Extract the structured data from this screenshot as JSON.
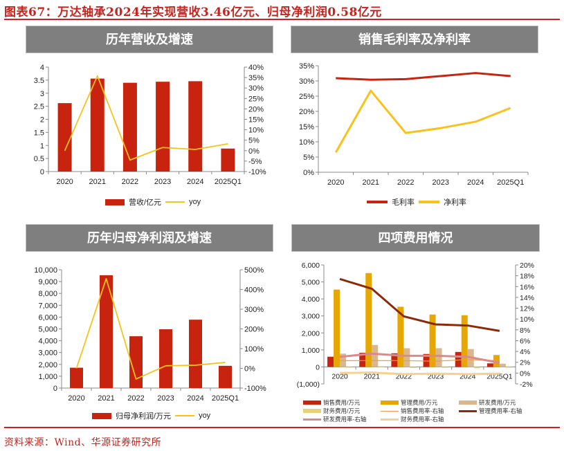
{
  "header": {
    "title": "图表67：万达轴承2024年实现营收3.46亿元、归母净利润0.58亿元"
  },
  "footer": {
    "source": "资料来源：Wind、华源证券研究所"
  },
  "colors": {
    "red": "#c8230e",
    "yellow": "#f7c21b",
    "dark_red": "#8b2a0a",
    "gold": "#e6a800",
    "tan": "#d9b88f",
    "khaki": "#e5d37a",
    "orange": "#f29a4e",
    "pink": "#d98a8a",
    "light_orange": "#f9cf8f",
    "header_bg": "#7f7f7f"
  },
  "panels": {
    "revenue": {
      "title": "历年营收及增速",
      "legend_bar": "营收/亿元",
      "legend_line": "yoy"
    },
    "margin": {
      "title": "销售毛利率及净利率",
      "legend_gross": "毛利率",
      "legend_net": "净利率"
    },
    "profit": {
      "title": "历年归母净利润及增速",
      "legend_bar": "归母净利润/万元",
      "legend_line": "yoy"
    },
    "expenses": {
      "title": "四项费用情况",
      "legend": [
        "销售费用/万元",
        "管理费用/万元",
        "研发费用/万元",
        "财务费用/万元",
        "销售费用率-右轴",
        "管理费用率-右轴",
        "研发费用率-右轴",
        "财务费用率-右轴"
      ]
    }
  },
  "chart_data": [
    {
      "id": "revenue",
      "type": "bar",
      "title": "历年营收及增速",
      "categories": [
        "2020",
        "2021",
        "2022",
        "2023",
        "2024",
        "2025Q1"
      ],
      "series": [
        {
          "name": "营收/亿元",
          "type": "bar",
          "axis": "left",
          "values": [
            2.62,
            3.56,
            3.4,
            3.44,
            3.46,
            0.88
          ]
        },
        {
          "name": "yoy",
          "type": "line",
          "axis": "right",
          "values": [
            0.0,
            35.8,
            -4.5,
            1.5,
            0.6,
            3.3
          ]
        }
      ],
      "yleft": {
        "min": 0,
        "max": 4,
        "step": 0.5,
        "ticks": [
          "0",
          "0.5",
          "1",
          "1.5",
          "2",
          "2.5",
          "3",
          "3.5",
          "4"
        ]
      },
      "yright": {
        "min": -10,
        "max": 40,
        "step": 5,
        "ticks": [
          "-10%",
          "-5%",
          "0%",
          "5%",
          "10%",
          "15%",
          "20%",
          "25%",
          "30%",
          "35%",
          "40%"
        ]
      }
    },
    {
      "id": "margin",
      "type": "line",
      "title": "销售毛利率及净利率",
      "categories": [
        "2020",
        "2021",
        "2022",
        "2023",
        "2024",
        "2025Q1"
      ],
      "series": [
        {
          "name": "毛利率",
          "values": [
            30.9,
            30.4,
            30.6,
            31.6,
            32.6,
            31.6
          ]
        },
        {
          "name": "净利率",
          "values": [
            6.5,
            26.8,
            12.9,
            14.5,
            16.6,
            21.1
          ]
        }
      ],
      "yleft": {
        "min": 0,
        "max": 35,
        "step": 5,
        "ticks": [
          "0%",
          "5%",
          "10%",
          "15%",
          "20%",
          "25%",
          "30%",
          "35%"
        ]
      }
    },
    {
      "id": "profit",
      "type": "bar",
      "title": "历年归母净利润及增速",
      "categories": [
        "2020",
        "2021",
        "2022",
        "2023",
        "2024",
        "2025Q1"
      ],
      "series": [
        {
          "name": "归母净利润/万元",
          "type": "bar",
          "axis": "left",
          "values": [
            1720,
            9540,
            4380,
            4970,
            5780,
            1880
          ]
        },
        {
          "name": "yoy",
          "type": "line",
          "axis": "right",
          "values": [
            0,
            455,
            -54,
            13,
            16,
            30
          ]
        }
      ],
      "yleft": {
        "min": 0,
        "max": 10000,
        "step": 1000,
        "ticks": [
          "0",
          "1,000",
          "2,000",
          "3,000",
          "4,000",
          "5,000",
          "6,000",
          "7,000",
          "8,000",
          "9,000",
          "10,000"
        ]
      },
      "yright": {
        "min": -100,
        "max": 500,
        "step": 100,
        "ticks": [
          "-100%",
          "0%",
          "100%",
          "200%",
          "300%",
          "400%",
          "500%"
        ]
      }
    },
    {
      "id": "expenses",
      "type": "bar",
      "title": "四项费用情况",
      "categories": [
        "2020",
        "2021",
        "2022",
        "2023",
        "2024",
        "2025Q1"
      ],
      "series": [
        {
          "name": "销售费用/万元",
          "type": "bar",
          "axis": "left",
          "values": [
            600,
            830,
            800,
            760,
            880,
            210
          ]
        },
        {
          "name": "管理费用/万元",
          "type": "bar",
          "axis": "left",
          "values": [
            4550,
            5520,
            3540,
            3080,
            3040,
            700
          ]
        },
        {
          "name": "研发费用/万元",
          "type": "bar",
          "axis": "left",
          "values": [
            780,
            1290,
            1100,
            1100,
            1050,
            190
          ]
        },
        {
          "name": "财务费用/万元",
          "type": "bar",
          "axis": "left",
          "values": [
            -10,
            40,
            -60,
            -50,
            -80,
            -30
          ]
        },
        {
          "name": "销售费用率-右轴",
          "type": "line",
          "axis": "right",
          "values": [
            2.3,
            2.3,
            2.3,
            2.2,
            2.5,
            2.3
          ]
        },
        {
          "name": "管理费用率-右轴",
          "type": "line",
          "axis": "right",
          "values": [
            17.4,
            15.6,
            10.5,
            9.0,
            8.8,
            7.8
          ]
        },
        {
          "name": "研发费用率-右轴",
          "type": "line",
          "axis": "right",
          "values": [
            3.0,
            3.6,
            3.2,
            3.2,
            3.0,
            1.9
          ]
        },
        {
          "name": "财务费用率-右轴",
          "type": "line",
          "axis": "right",
          "values": [
            0.0,
            0.1,
            -0.2,
            -0.1,
            -0.2,
            -0.1
          ]
        }
      ],
      "yleft": {
        "min": -1000,
        "max": 6000,
        "step": 1000,
        "ticks": [
          "(1,000)",
          "0",
          "1,000",
          "2,000",
          "3,000",
          "4,000",
          "5,000",
          "6,000"
        ]
      },
      "yright": {
        "min": -2,
        "max": 20,
        "step": 2,
        "ticks": [
          "-2%",
          "0%",
          "2%",
          "4%",
          "6%",
          "8%",
          "10%",
          "12%",
          "14%",
          "16%",
          "18%",
          "20%"
        ]
      }
    }
  ]
}
